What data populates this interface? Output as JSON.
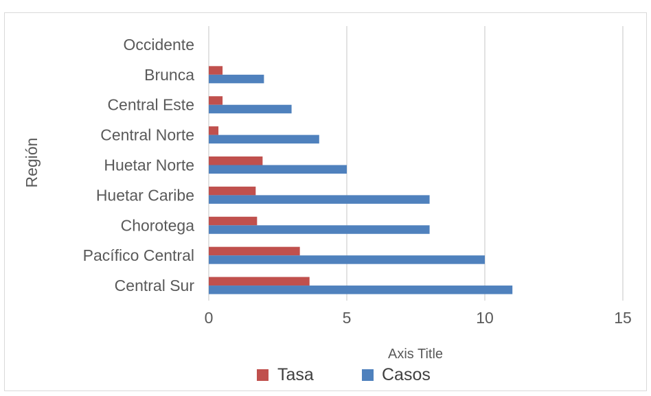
{
  "chart_data": {
    "type": "bar",
    "orientation": "horizontal",
    "categories": [
      "Occidente",
      "Brunca",
      "Central Este",
      "Central Norte",
      "Huetar Norte",
      "Huetar Caribe",
      "Chorotega",
      "Pacífico Central",
      "Central Sur"
    ],
    "series": [
      {
        "name": "Tasa",
        "color": "#c0504d",
        "values": [
          0,
          0.5,
          0.5,
          0.35,
          1.95,
          1.7,
          1.75,
          3.3,
          3.65
        ]
      },
      {
        "name": "Casos",
        "color": "#4f81bd",
        "values": [
          0,
          2,
          3,
          4,
          5,
          8,
          8,
          10,
          11
        ]
      }
    ],
    "xlabel": "Axis Title",
    "ylabel": "Región",
    "xlim": [
      0,
      15
    ],
    "xticks": [
      "0",
      "5",
      "10",
      "15"
    ],
    "grid": true,
    "legend": "bottom"
  }
}
